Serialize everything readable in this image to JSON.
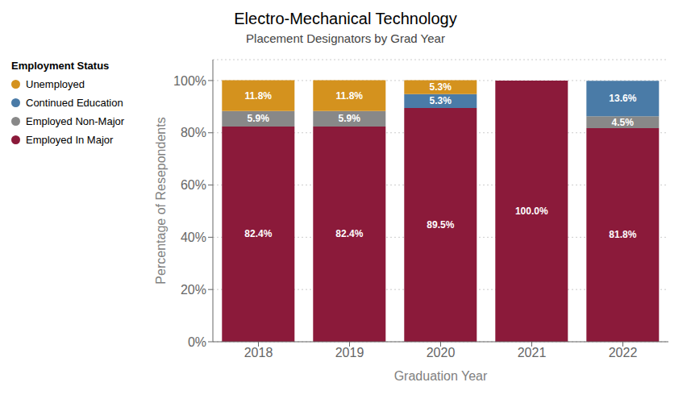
{
  "chart_data": {
    "type": "bar",
    "stacked": true,
    "title": "Electro-Mechanical Technology",
    "subtitle": "Placement Designators by Grad Year",
    "xlabel": "Graduation Year",
    "ylabel": "Percentage of Resepondents",
    "legend_title": "Employment Status",
    "legend": "upper left",
    "grid": true,
    "data_labels": true,
    "categories": [
      "2018",
      "2019",
      "2020",
      "2021",
      "2022"
    ],
    "series": [
      {
        "name": "Employed In Major",
        "color": "#8B1A3A",
        "values": [
          82.4,
          82.4,
          89.5,
          100.0,
          81.8
        ],
        "value_labels": [
          "82.4%",
          "82.4%",
          "89.5%",
          "100.0%",
          "81.8%"
        ]
      },
      {
        "name": "Employed Non-Major",
        "color": "#888888",
        "values": [
          5.9,
          5.9,
          0.0,
          0.0,
          4.5
        ],
        "value_labels": [
          "5.9%",
          "5.9%",
          null,
          null,
          "4.5%"
        ]
      },
      {
        "name": "Continued Education",
        "color": "#4A7BA7",
        "values": [
          0.0,
          0.0,
          5.3,
          0.0,
          13.6
        ],
        "value_labels": [
          null,
          null,
          "5.3%",
          null,
          "13.6%"
        ]
      },
      {
        "name": "Unemployed",
        "color": "#D4921E",
        "values": [
          11.8,
          11.8,
          5.3,
          0.0,
          0.0
        ],
        "value_labels": [
          "11.8%",
          "11.8%",
          "5.3%",
          null,
          null
        ]
      }
    ],
    "ylim": [
      0,
      108
    ],
    "yticks": [
      {
        "value": 0,
        "label": "0%"
      },
      {
        "value": 20,
        "label": "20%"
      },
      {
        "value": 40,
        "label": "40%"
      },
      {
        "value": 60,
        "label": "60%"
      },
      {
        "value": 80,
        "label": "80%"
      },
      {
        "value": 100,
        "label": "100%"
      }
    ]
  }
}
